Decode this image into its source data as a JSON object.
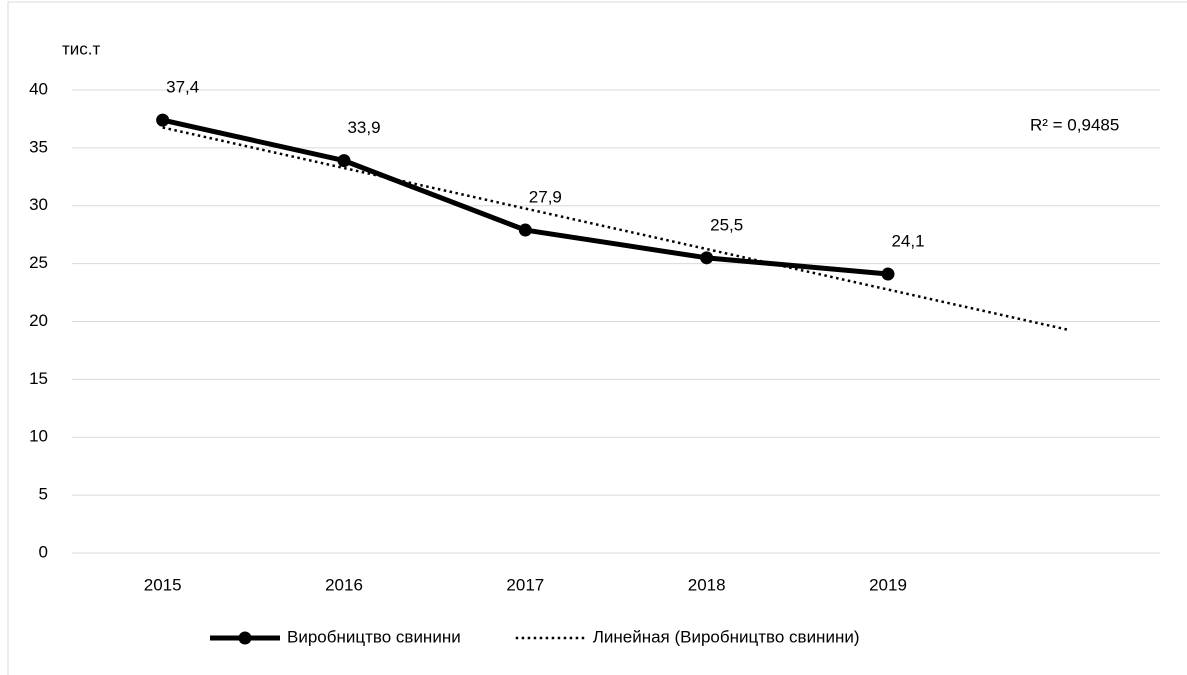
{
  "chart_data": {
    "type": "line",
    "y_label": "тис.т",
    "categories": [
      "2015",
      "2016",
      "2017",
      "2018",
      "2019",
      null
    ],
    "series": [
      {
        "name": "Виробництво свинини",
        "color": "#000000",
        "style": "solid",
        "markers": true,
        "values": [
          37.4,
          33.9,
          27.9,
          25.5,
          24.1,
          null
        ],
        "value_labels": [
          "37,4",
          "33,9",
          "27,9",
          "25,5",
          "24,1",
          null
        ]
      },
      {
        "name": "Линейная (Виробництво свинини)",
        "color": "#000000",
        "style": "dotted",
        "markers": false,
        "values": [
          36.76,
          33.26,
          29.76,
          26.26,
          22.76,
          19.26
        ]
      }
    ],
    "annotation": "R² = 0,9485",
    "ylim": [
      0,
      40
    ],
    "yticks": [
      0,
      5,
      10,
      15,
      20,
      25,
      30,
      35,
      40
    ],
    "grid": true,
    "legend": "bottom"
  }
}
